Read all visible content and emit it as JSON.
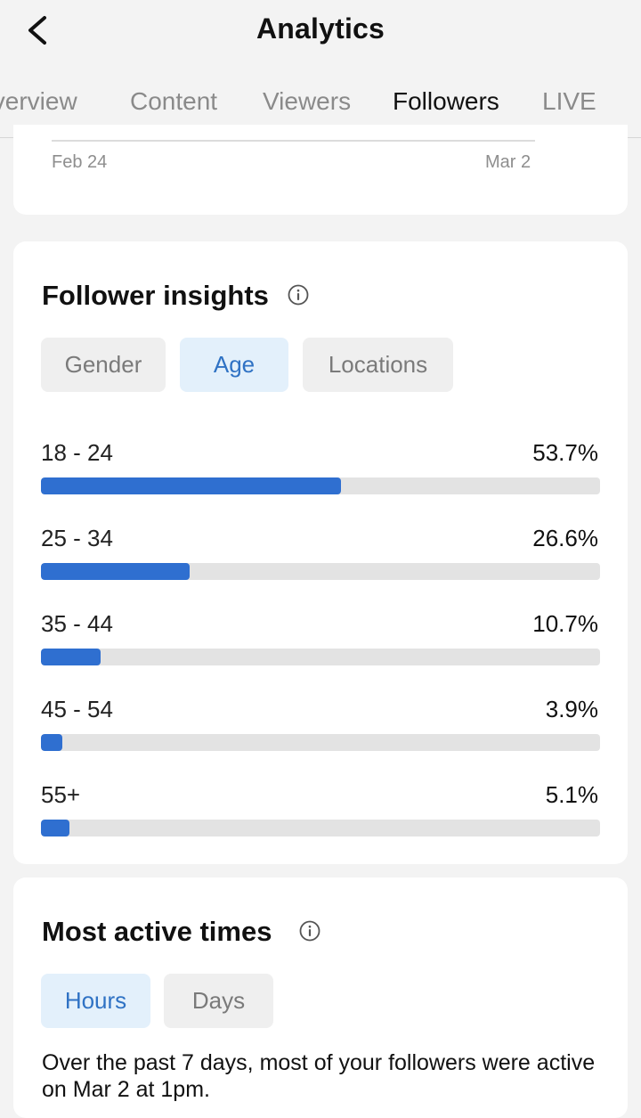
{
  "header": {
    "title": "Analytics"
  },
  "tabs": [
    "Overview",
    "Content",
    "Viewers",
    "Followers",
    "LIVE"
  ],
  "active_tab": "Followers",
  "chart_axis": {
    "start": "Feb 24",
    "end": "Mar 2"
  },
  "follower_insights": {
    "title": "Follower insights",
    "filters": [
      "Gender",
      "Age",
      "Locations"
    ],
    "selected_filter": "Age",
    "rows": [
      {
        "label": "18 - 24",
        "percent": "53.7%",
        "value": 53.7
      },
      {
        "label": "25 - 34",
        "percent": "26.6%",
        "value": 26.6
      },
      {
        "label": "35 - 44",
        "percent": "10.7%",
        "value": 10.7
      },
      {
        "label": "45 - 54",
        "percent": "3.9%",
        "value": 3.9
      },
      {
        "label": "55+",
        "percent": "5.1%",
        "value": 5.1
      }
    ]
  },
  "active_times": {
    "title": "Most active times",
    "filters": [
      "Hours",
      "Days"
    ],
    "selected_filter": "Hours",
    "summary": "Over the past 7 days, most of your followers were active on Mar 2 at 1pm."
  },
  "colors": {
    "accent": "#2f6fd0",
    "selected_pill_bg": "#e3f0fb",
    "selected_pill_text": "#2f72c4"
  }
}
